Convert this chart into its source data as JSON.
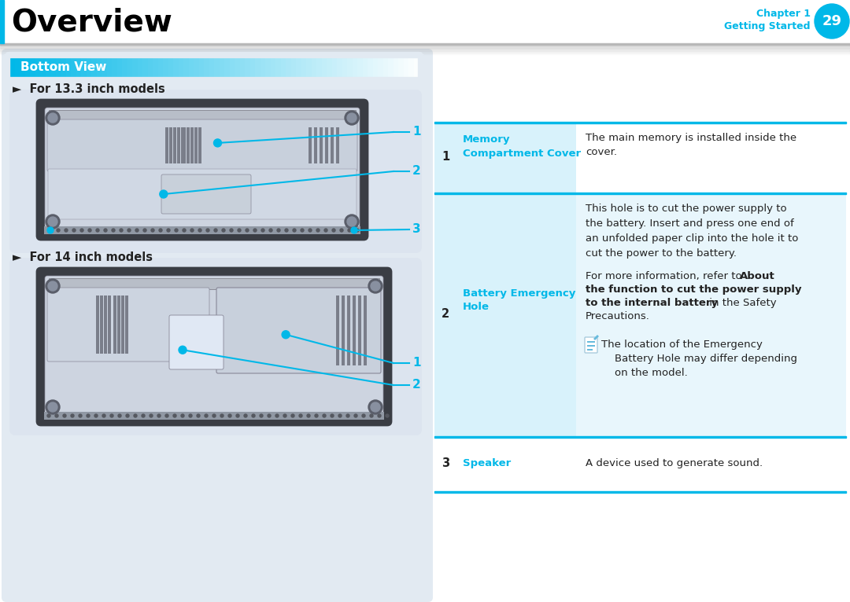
{
  "title": "Overview",
  "chapter_text": "Chapter 1",
  "getting_started_text": "Getting Started",
  "page_number": "29",
  "section_title": "Bottom View",
  "model_1_title": "►  For 13.3 inch models",
  "model_2_title": "►  For 14 inch models",
  "bg_color": "#ffffff",
  "cyan_color": "#00b8e8",
  "table_border_color": "#00b8e8",
  "table_left_bg": "#d8f2fb",
  "table_right_bg_row2": "#e8f8fd",
  "left_panel_bg": "#e2eaf2",
  "laptop_body": "#c8cdd6",
  "laptop_inner": "#d4d9e4",
  "laptop_dark": "#3a3d44",
  "screw_dark": "#5a5e6a",
  "screw_light": "#8890a0",
  "vent_color": "#7a7e8a",
  "speaker_hole": "#555860",
  "image_bg": "#dce4ef"
}
